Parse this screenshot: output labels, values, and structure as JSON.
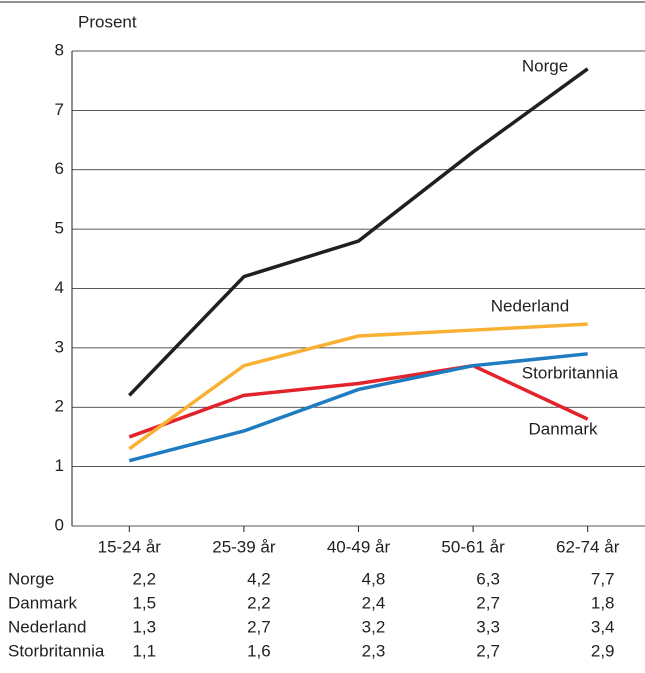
{
  "chart_data": {
    "type": "line",
    "y_label": "Prosent",
    "categories": [
      "15-24 år",
      "25-39 år",
      "40-49 år",
      "50-61 år",
      "62-74 år"
    ],
    "series": [
      {
        "name": "Norge",
        "color": "#231f20",
        "values": [
          2.2,
          4.2,
          4.8,
          6.3,
          7.7
        ],
        "value_labels": [
          "2,2",
          "4,2",
          "4,8",
          "6,3",
          "7,7"
        ]
      },
      {
        "name": "Danmark",
        "color": "#e3232b",
        "values": [
          1.5,
          2.2,
          2.4,
          2.7,
          1.8
        ],
        "value_labels": [
          "1,5",
          "2,2",
          "2,4",
          "2,7",
          "1,8"
        ]
      },
      {
        "name": "Nederland",
        "color": "#f8b133",
        "values": [
          1.3,
          2.7,
          3.2,
          3.3,
          3.4
        ],
        "value_labels": [
          "1,3",
          "2,7",
          "3,2",
          "3,3",
          "3,4"
        ]
      },
      {
        "name": "Storbritannia",
        "color": "#1f7cc1",
        "values": [
          1.1,
          1.6,
          2.3,
          2.7,
          2.9
        ],
        "value_labels": [
          "1,1",
          "1,6",
          "2,3",
          "2,7",
          "2,9"
        ]
      }
    ],
    "ylim": [
      0,
      8
    ],
    "yticks": [
      0,
      1,
      2,
      3,
      4,
      5,
      6,
      7,
      8
    ],
    "grid": true
  }
}
